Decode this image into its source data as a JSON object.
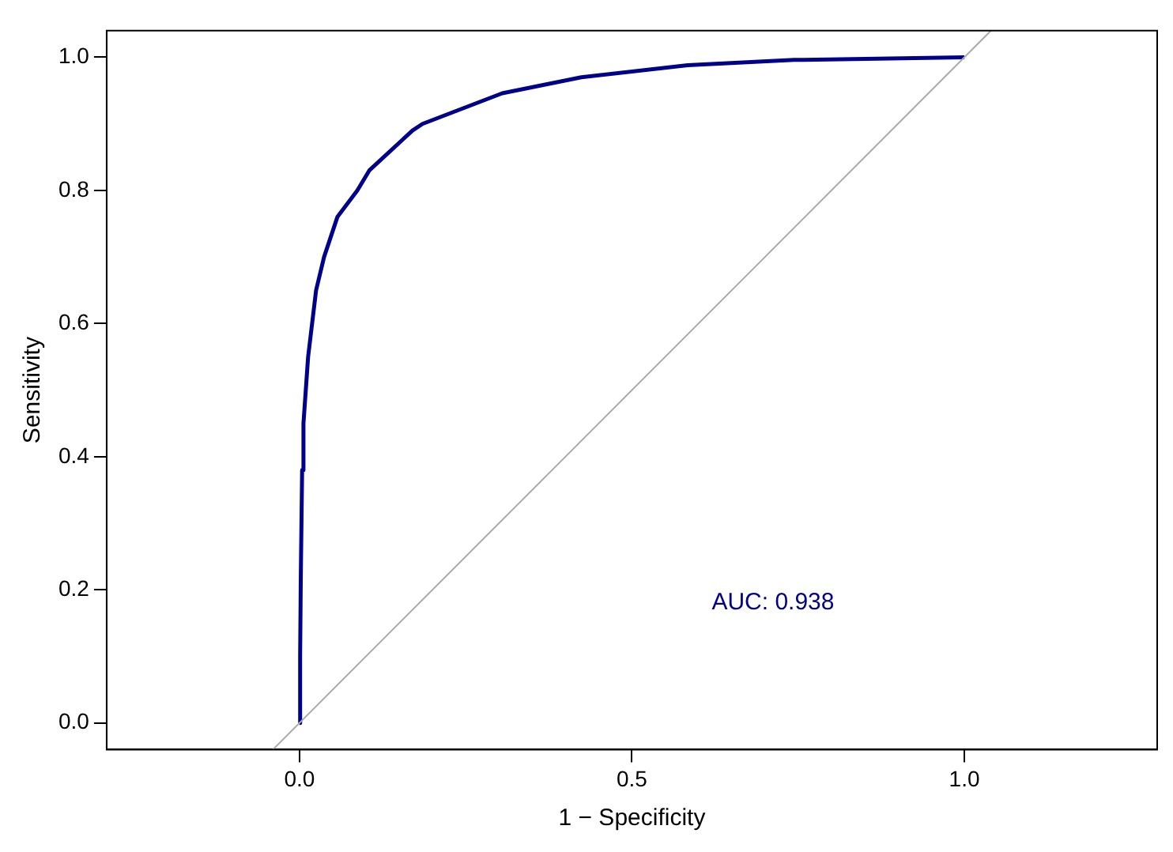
{
  "chart_data": {
    "type": "line",
    "xlabel": "1 − Specificity",
    "ylabel": "Sensitivity",
    "xlim": [
      -0.29,
      1.29
    ],
    "ylim": [
      -0.04,
      1.04
    ],
    "xticks": [
      {
        "value": 0,
        "label": "0.0"
      },
      {
        "value": 0.5,
        "label": "0.5"
      },
      {
        "value": 1,
        "label": "1.0"
      }
    ],
    "yticks": [
      {
        "value": 0,
        "label": "0.0"
      },
      {
        "value": 0.2,
        "label": "0.2"
      },
      {
        "value": 0.4,
        "label": "0.4"
      },
      {
        "value": 0.6,
        "label": "0.6"
      },
      {
        "value": 0.8,
        "label": "0.8"
      },
      {
        "value": 1,
        "label": "1.0"
      }
    ],
    "series": [
      {
        "color": "#aaaaaa",
        "x": [
          -0.04,
          1.04
        ],
        "values": [
          -0.04,
          1.04
        ]
      },
      {
        "color": "#00008b",
        "x": [
          0,
          0.001,
          0.002,
          0.004,
          0.006,
          0.013,
          0.025,
          0.037,
          0.057,
          0.087,
          0.105,
          0.17,
          0.185,
          0.305,
          0.424,
          0.584,
          0.744,
          1
        ],
        "values": [
          0,
          0.1,
          0.22,
          0.38,
          0.45,
          0.55,
          0.65,
          0.7,
          0.76,
          0.8,
          0.83,
          0.89,
          0.9,
          0.946,
          0.97,
          0.988,
          0.996,
          1
        ]
      }
    ],
    "annotations": [
      "AUC: 0.938"
    ],
    "grid": false,
    "legend": false,
    "marker": "none",
    "line_style": "solid"
  }
}
